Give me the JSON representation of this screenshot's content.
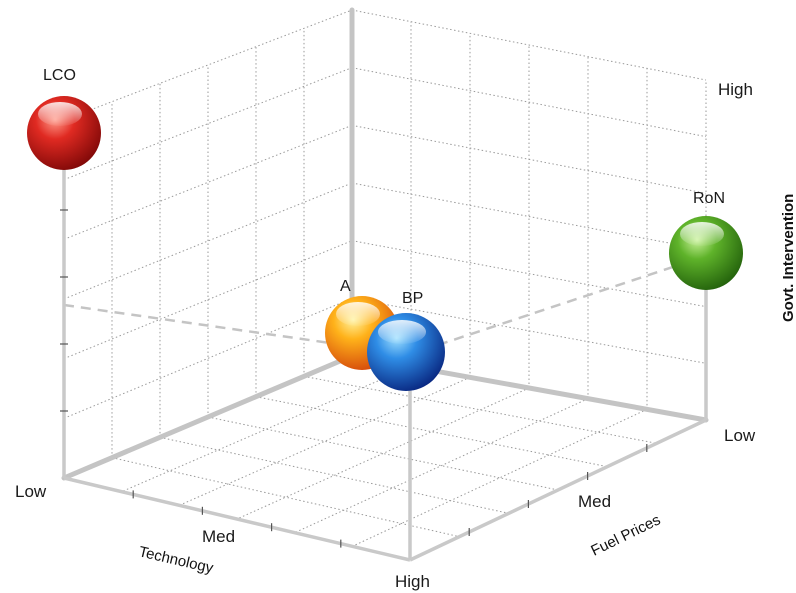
{
  "chart_data": {
    "type": "scatter",
    "subtype": "3d-bubble",
    "axes": {
      "x": {
        "label": "Technology",
        "ticks": [
          "Low",
          "Med",
          "High"
        ]
      },
      "y": {
        "label": "Fuel Prices",
        "ticks": [
          "Low",
          "Med",
          "High"
        ]
      },
      "z": {
        "label": "Govt. Intervention",
        "ticks": [
          "Low",
          "High"
        ]
      }
    },
    "grid": true,
    "points": [
      {
        "label": "LCO",
        "technology": "Low",
        "fuel_prices": "Low",
        "govt_intervention": "High",
        "color": "#d21e1e"
      },
      {
        "label": "RoN",
        "technology": "Low",
        "fuel_prices": "Low",
        "govt_intervention": "Med",
        "color": "#4da321"
      },
      {
        "label": "A",
        "technology": "Med",
        "fuel_prices": "Med",
        "govt_intervention": "Low",
        "color": "#f29a0c"
      },
      {
        "label": "BP",
        "technology": "High",
        "fuel_prices": "High",
        "govt_intervention": "Med",
        "color": "#1d5fd1"
      }
    ]
  }
}
